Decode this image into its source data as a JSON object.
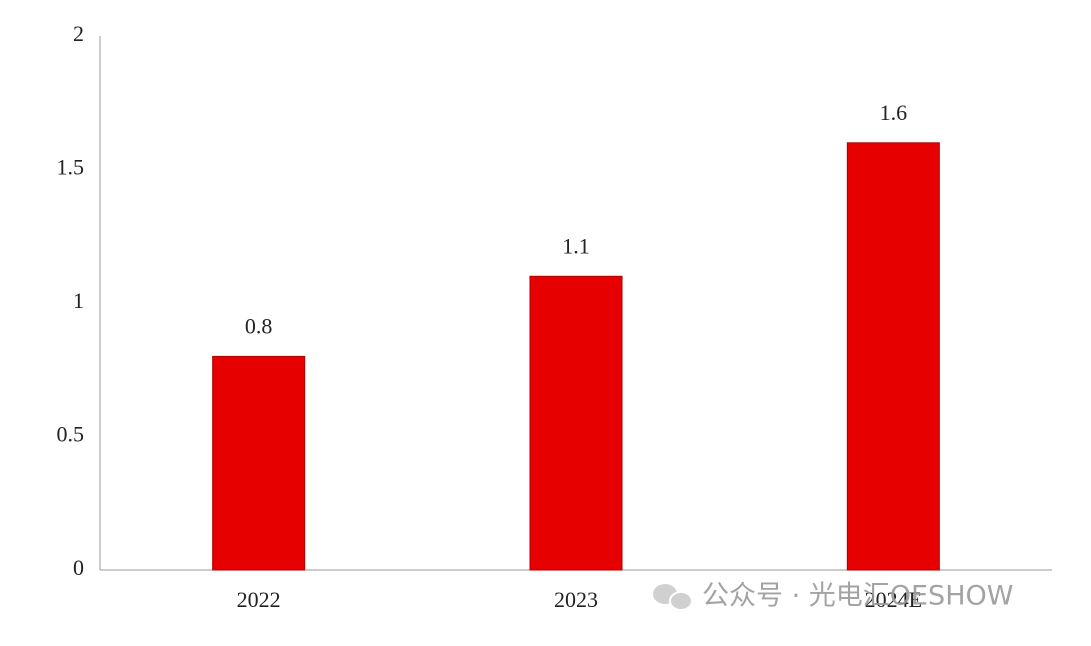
{
  "chart_data": {
    "type": "bar",
    "categories": [
      "2022",
      "2023",
      "2024E"
    ],
    "values": [
      0.8,
      1.1,
      1.6
    ],
    "color": "#e60000",
    "ylim": [
      0,
      2
    ],
    "yticks": [
      0,
      0.5,
      1,
      1.5,
      2
    ],
    "grid": false
  },
  "watermark": "公众号 · 光电汇OESHOW"
}
